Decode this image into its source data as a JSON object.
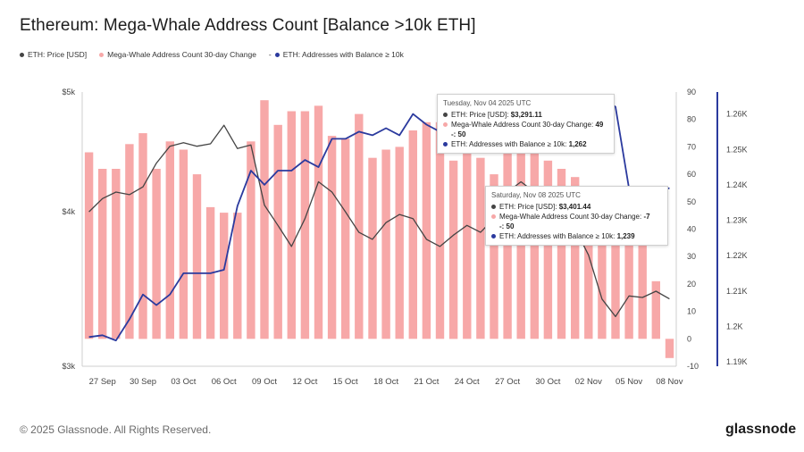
{
  "header": {
    "title": "Ethereum: Mega-Whale Address Count [Balance >10k ETH]"
  },
  "legend": {
    "items": [
      {
        "label": "ETH: Price [USD]",
        "color": "#444444"
      },
      {
        "label": "Mega-Whale Address Count 30-day Change",
        "color": "#f7a8a8"
      },
      {
        "label": "ETH: Addresses with Balance ≥ 10k",
        "color": "#2b3a9e"
      }
    ],
    "dash": "-"
  },
  "tooltips": [
    {
      "date": "Tuesday, Nov 04 2025 UTC",
      "rows": [
        {
          "label": "ETH: Price [USD]: ",
          "value": "$3,291.11",
          "color": "#444444"
        },
        {
          "label": "Mega-Whale Address Count 30-day Change: ",
          "value": "49",
          "extra": "-: 50",
          "color": "#f7a8a8"
        },
        {
          "label": "ETH: Addresses with Balance ≥ 10k: ",
          "value": "1,262",
          "color": "#2b3a9e"
        }
      ]
    },
    {
      "date": "Saturday, Nov 08 2025 UTC",
      "rows": [
        {
          "label": "ETH: Price [USD]: ",
          "value": "$3,401.44",
          "color": "#444444"
        },
        {
          "label": "Mega-Whale Address Count 30-day Change: ",
          "value": "-7",
          "extra": "-: 50",
          "color": "#f7a8a8"
        },
        {
          "label": "ETH: Addresses with Balance ≥ 10k: ",
          "value": "1,239",
          "color": "#2b3a9e"
        }
      ]
    }
  ],
  "footer": {
    "copyright": "© 2025 Glassnode. All Rights Reserved.",
    "brand": "glassnode"
  },
  "chart_data": {
    "type": "bar",
    "title": "Ethereum: Mega-Whale Address Count [Balance >10k ETH]",
    "x_ticks": [
      "27 Sep",
      "30 Sep",
      "03 Oct",
      "06 Oct",
      "09 Oct",
      "12 Oct",
      "15 Oct",
      "18 Oct",
      "21 Oct",
      "24 Oct",
      "27 Oct",
      "30 Oct",
      "02 Nov",
      "05 Nov",
      "08 Nov"
    ],
    "dates": [
      "26 Sep",
      "27 Sep",
      "28 Sep",
      "29 Sep",
      "30 Sep",
      "01 Oct",
      "02 Oct",
      "03 Oct",
      "04 Oct",
      "05 Oct",
      "06 Oct",
      "07 Oct",
      "08 Oct",
      "09 Oct",
      "10 Oct",
      "11 Oct",
      "12 Oct",
      "13 Oct",
      "14 Oct",
      "15 Oct",
      "16 Oct",
      "17 Oct",
      "18 Oct",
      "19 Oct",
      "20 Oct",
      "21 Oct",
      "22 Oct",
      "23 Oct",
      "24 Oct",
      "25 Oct",
      "26 Oct",
      "27 Oct",
      "28 Oct",
      "29 Oct",
      "30 Oct",
      "31 Oct",
      "01 Nov",
      "02 Nov",
      "03 Nov",
      "04 Nov",
      "05 Nov",
      "06 Nov",
      "07 Nov",
      "08 Nov"
    ],
    "series": [
      {
        "name": "Mega-Whale Address Count 30-day Change",
        "axis": "right-inner",
        "color": "#f7a8a8",
        "values": [
          68,
          62,
          62,
          71,
          75,
          62,
          72,
          69,
          60,
          48,
          46,
          46,
          72,
          87,
          78,
          83,
          83,
          85,
          74,
          73,
          82,
          66,
          69,
          70,
          76,
          79,
          79,
          65,
          69,
          66,
          60,
          69,
          69,
          69,
          65,
          62,
          59,
          55,
          45,
          49,
          40,
          40,
          21,
          -7
        ]
      },
      {
        "name": "ETH: Price [USD]",
        "axis": "left",
        "color": "#444444",
        "values": [
          4000,
          4100,
          4150,
          4130,
          4190,
          4380,
          4520,
          4550,
          4520,
          4540,
          4700,
          4500,
          4530,
          4050,
          3900,
          3750,
          3950,
          4230,
          4150,
          4000,
          3850,
          3800,
          3920,
          3980,
          3950,
          3800,
          3750,
          3830,
          3900,
          3850,
          3950,
          4150,
          4230,
          4150,
          4040,
          3850,
          3880,
          3690,
          3400,
          3291,
          3420,
          3410,
          3450,
          3401
        ]
      },
      {
        "name": "ETH: Addresses with Balance ≥ 10k",
        "axis": "right-outer",
        "color": "#2b3a9e",
        "values": [
          1197,
          1197.5,
          1196,
          1202,
          1209,
          1206,
          1209,
          1215,
          1215,
          1215,
          1216,
          1234,
          1244,
          1240,
          1244,
          1244,
          1247,
          1245,
          1253,
          1253,
          1255,
          1254,
          1256,
          1254,
          1260,
          1257,
          1255,
          1256,
          1255,
          1256,
          1262,
          1262,
          1261,
          1265,
          1265,
          1262,
          1264,
          1263,
          1265,
          1262,
          1239,
          1238,
          1239,
          1239
        ]
      }
    ],
    "y_left": {
      "ticks": [
        "$3k",
        "$4k",
        "$5k"
      ],
      "scale": "log",
      "range": [
        3000,
        5000
      ]
    },
    "y_right_inner": {
      "ticks": [
        -10,
        0,
        10,
        20,
        30,
        40,
        50,
        60,
        70,
        80,
        90
      ],
      "range": [
        -10,
        90
      ]
    },
    "y_right_outer": {
      "ticks": [
        "1.19K",
        "1.2K",
        "1.21K",
        "1.22K",
        "1.23K",
        "1.24K",
        "1.25K",
        "1.26K"
      ],
      "range": [
        1190,
        1270
      ]
    },
    "grid": false,
    "legend_position": "top-left"
  }
}
